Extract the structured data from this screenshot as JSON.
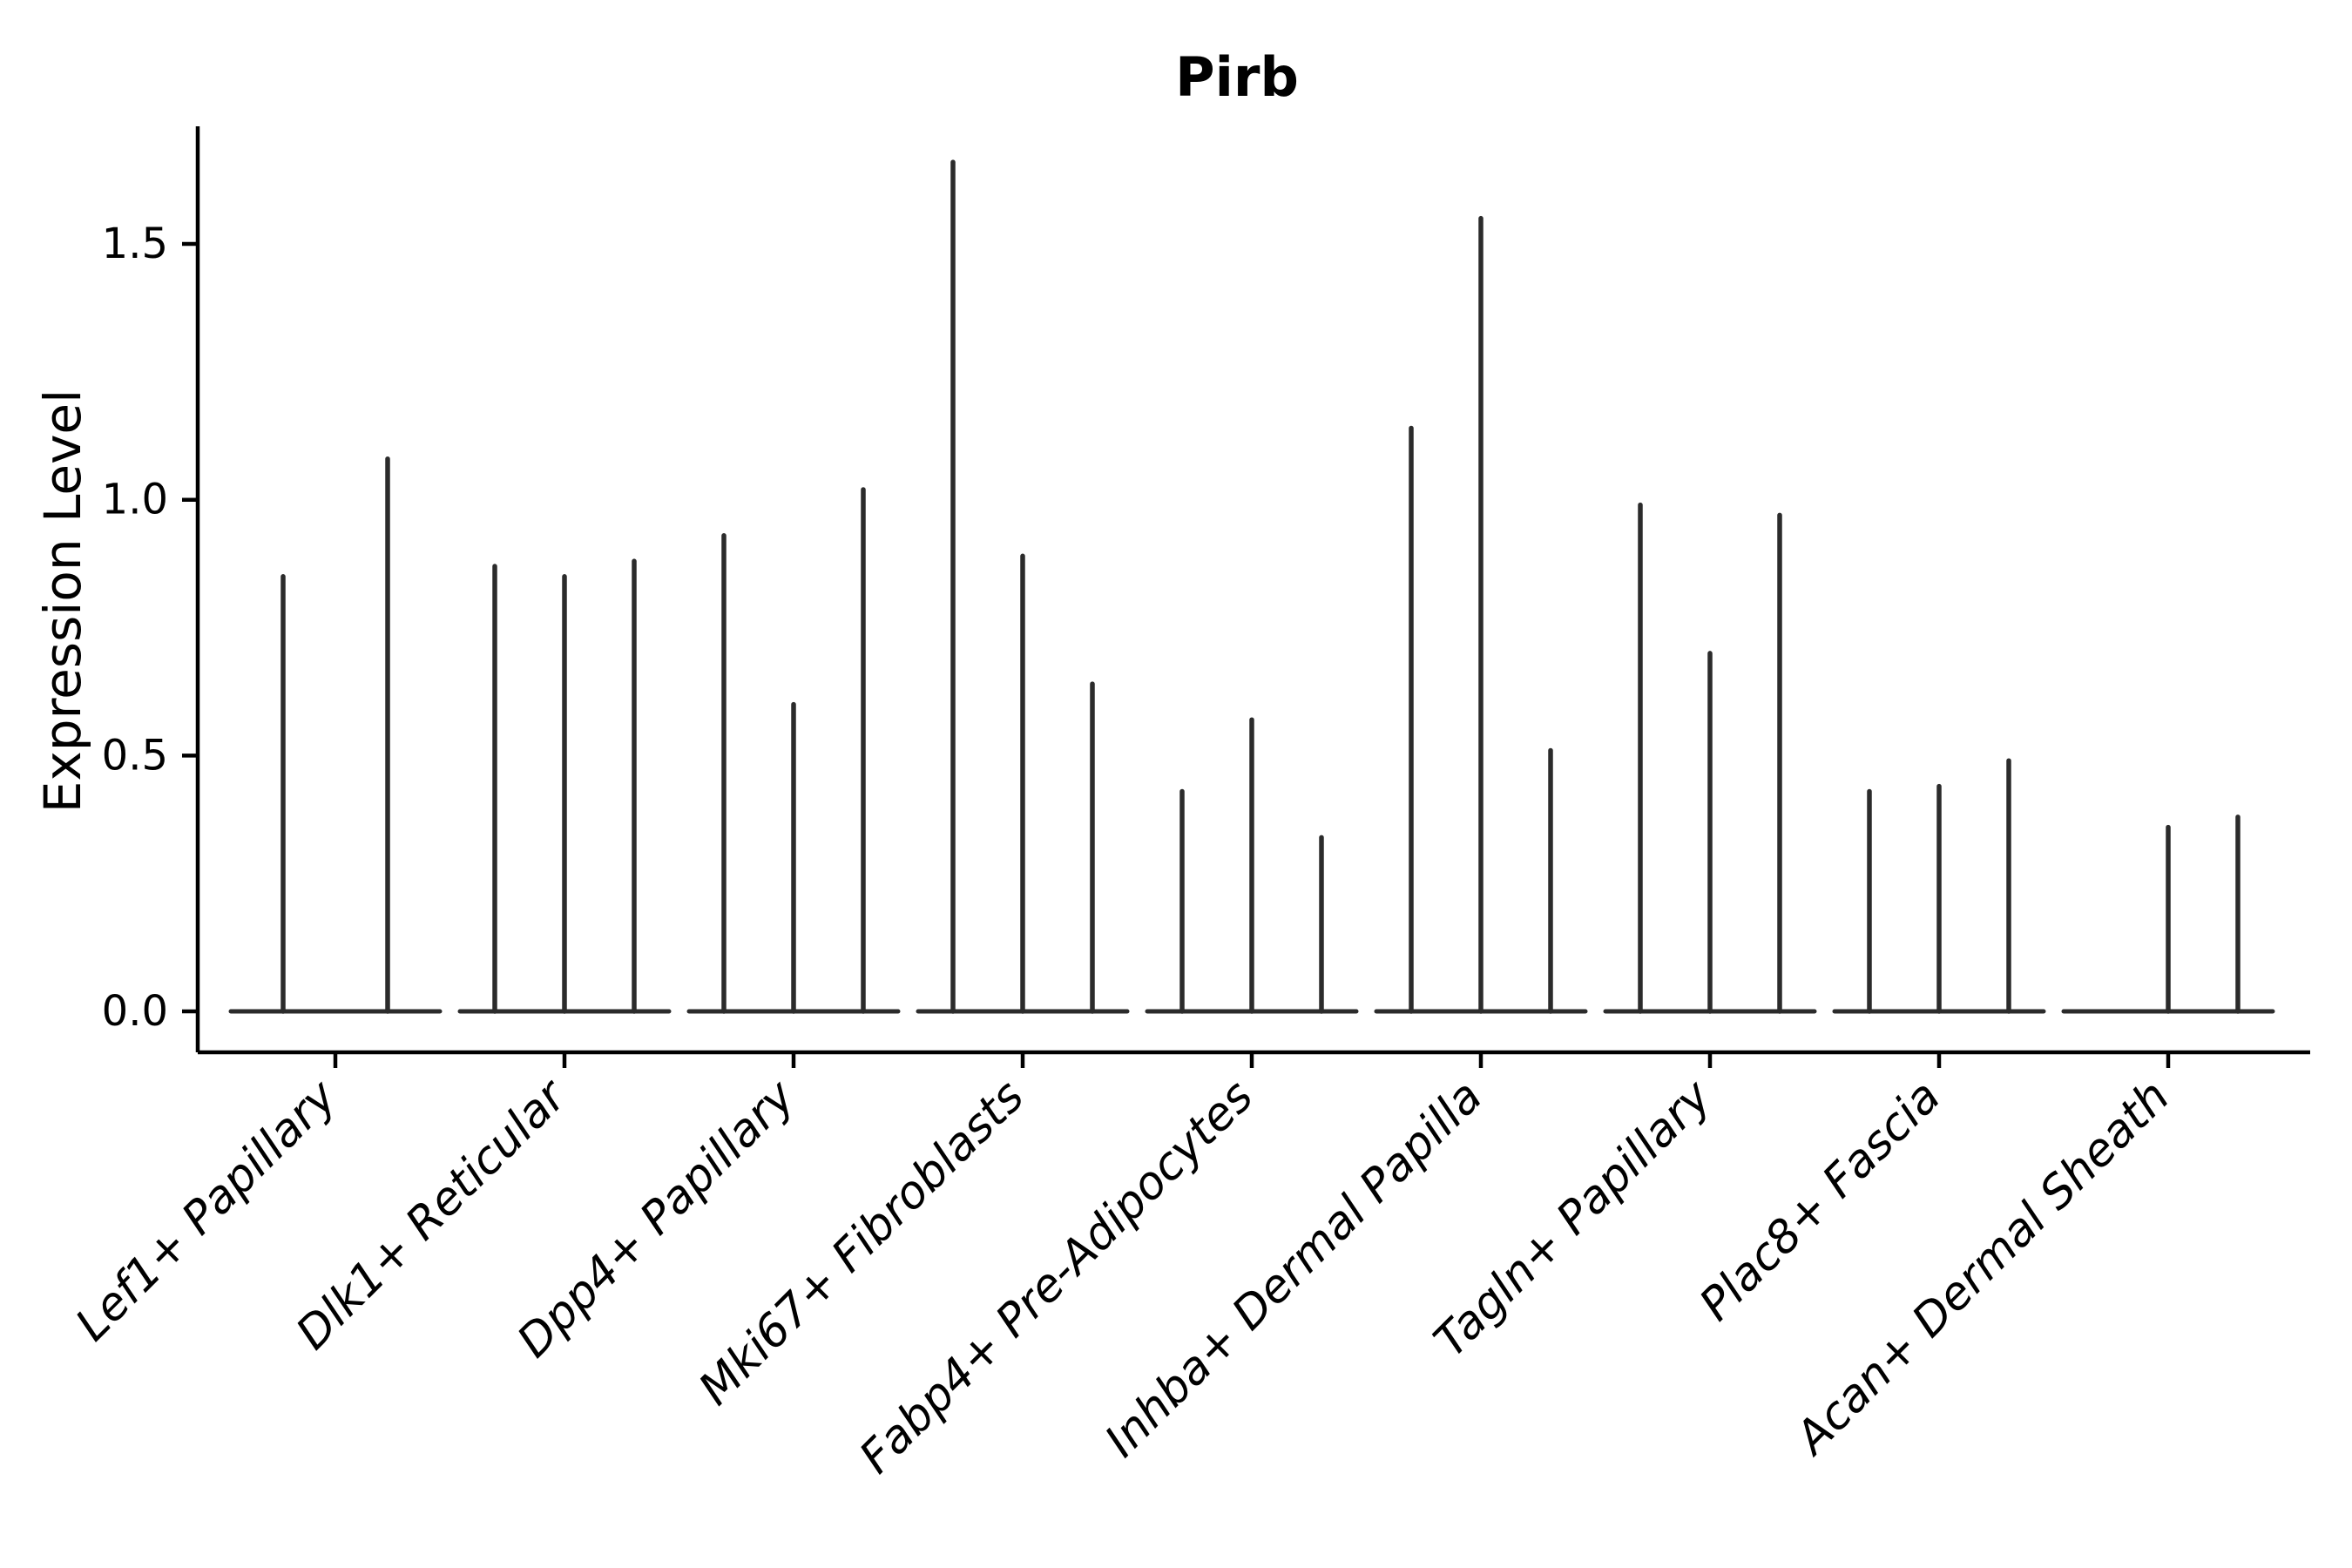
{
  "title": "Pirb",
  "y_axis": {
    "label": "Expression Level",
    "ticks": [
      {
        "label": "0.0",
        "value": 0.0
      },
      {
        "label": "0.5",
        "value": 0.5
      },
      {
        "label": "1.0",
        "value": 1.0
      },
      {
        "label": "1.5",
        "value": 1.5
      }
    ]
  },
  "chart_data": {
    "type": "violin",
    "title": "Pirb",
    "xlabel": "",
    "ylabel": "Expression Level",
    "ylim": [
      0,
      1.72
    ],
    "grid": false,
    "legend": "none",
    "description": "Collapsed violin plot of Pirb expression per fibroblast cluster; each cluster shows 2-3 thin violins (spikes) whose tops mark the maximum expression, with a flat baseline at 0.",
    "categories": [
      "Lef1+ Papillary",
      "Dlk1+ Reticular",
      "Dpp4+ Papillary",
      "Mki67+ Fibroblasts",
      "Fabp4+ Pre-Adipocytes",
      "Inhba+ Dermal Papilla",
      "Tagln+ Papillary",
      "Plac8+ Fascia",
      "Acan+ Dermal Sheath"
    ],
    "groups": [
      {
        "category": "Lef1+ Papillary",
        "violins": [
          {
            "dx": -60,
            "peak": 0.85
          },
          {
            "dx": 60,
            "peak": 1.08
          }
        ]
      },
      {
        "category": "Dlk1+ Reticular",
        "violins": [
          {
            "dx": -80,
            "peak": 0.87
          },
          {
            "dx": 0,
            "peak": 0.85
          },
          {
            "dx": 80,
            "peak": 0.88
          }
        ]
      },
      {
        "category": "Dpp4+ Papillary",
        "violins": [
          {
            "dx": -80,
            "peak": 0.93
          },
          {
            "dx": 0,
            "peak": 0.6
          },
          {
            "dx": 80,
            "peak": 1.02
          }
        ]
      },
      {
        "category": "Mki67+ Fibroblasts",
        "violins": [
          {
            "dx": -80,
            "peak": 1.66
          },
          {
            "dx": 0,
            "peak": 0.89
          },
          {
            "dx": 80,
            "peak": 0.64
          }
        ]
      },
      {
        "category": "Fabp4+ Pre-Adipocytes",
        "violins": [
          {
            "dx": -80,
            "peak": 0.43
          },
          {
            "dx": 0,
            "peak": 0.57
          },
          {
            "dx": 80,
            "peak": 0.34
          }
        ]
      },
      {
        "category": "Inhba+ Dermal Papilla",
        "violins": [
          {
            "dx": -80,
            "peak": 1.14
          },
          {
            "dx": 0,
            "peak": 1.55
          },
          {
            "dx": 80,
            "peak": 0.51
          }
        ]
      },
      {
        "category": "Tagln+ Papillary",
        "violins": [
          {
            "dx": -80,
            "peak": 0.99
          },
          {
            "dx": 0,
            "peak": 0.7
          },
          {
            "dx": 80,
            "peak": 0.97
          }
        ]
      },
      {
        "category": "Plac8+ Fascia",
        "violins": [
          {
            "dx": -80,
            "peak": 0.43
          },
          {
            "dx": 0,
            "peak": 0.44
          },
          {
            "dx": 80,
            "peak": 0.49
          }
        ]
      },
      {
        "category": "Acan+ Dermal Sheath",
        "violins": [
          {
            "dx": -80,
            "peak": 0.0
          },
          {
            "dx": 0,
            "peak": 0.36
          },
          {
            "dx": 80,
            "peak": 0.38
          }
        ]
      }
    ],
    "colors": {
      "violin": "#2b2b2b",
      "axis": "#000000",
      "background": "#ffffff"
    }
  }
}
